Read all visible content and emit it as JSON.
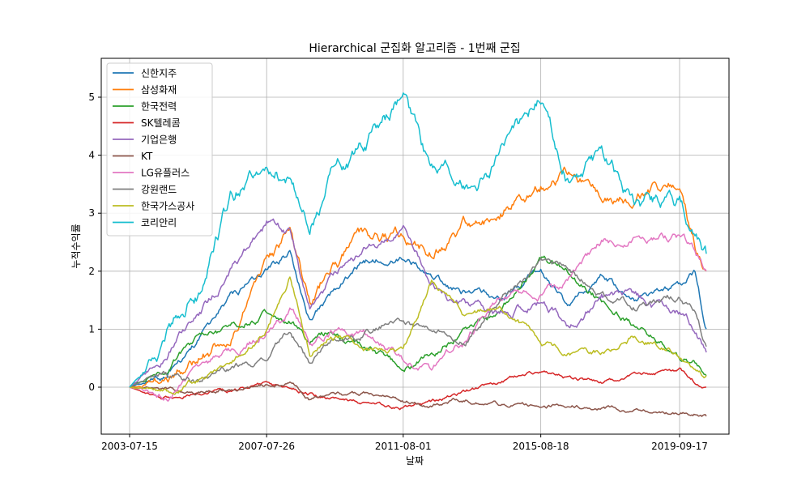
{
  "chart_data": {
    "type": "line",
    "title": "Hierarchical 군집화 알고리즘 - 1번째 군집",
    "xlabel": "날짜",
    "ylabel": "누적수익률",
    "x_range": [
      "2003-07-15",
      "2020-06-30"
    ],
    "x_ticks": [
      "2003-07-15",
      "2007-07-26",
      "2011-08-01",
      "2015-08-18",
      "2019-09-17"
    ],
    "ylim": [
      -0.8,
      5.6
    ],
    "y_ticks": [
      0,
      1,
      2,
      3,
      4,
      5
    ],
    "grid": true,
    "legend_position": "upper-left",
    "series": [
      {
        "name": "신한지주",
        "color": "#1f77b4",
        "x": [
          "2003-07-15",
          "2004-07-01",
          "2005-07-01",
          "2006-07-01",
          "2007-07-26",
          "2008-04-01",
          "2008-11-01",
          "2009-06-01",
          "2010-06-01",
          "2011-08-01",
          "2012-06-01",
          "2013-06-01",
          "2014-06-01",
          "2015-08-18",
          "2016-06-01",
          "2017-06-01",
          "2018-06-01",
          "2019-09-17",
          "2020-03-01",
          "2020-06-30"
        ],
        "values": [
          0,
          0.2,
          0.8,
          1.5,
          2.0,
          2.3,
          1.2,
          1.6,
          2.2,
          2.3,
          1.9,
          1.6,
          1.5,
          2.0,
          1.4,
          1.9,
          1.5,
          1.8,
          2.0,
          1.0
        ]
      },
      {
        "name": "삼성화재",
        "color": "#ff7f0e",
        "x": [
          "2003-07-15",
          "2004-07-01",
          "2005-07-01",
          "2006-07-01",
          "2007-07-26",
          "2008-04-01",
          "2008-11-01",
          "2009-06-01",
          "2010-06-01",
          "2011-08-01",
          "2012-06-01",
          "2013-06-01",
          "2014-06-01",
          "2015-08-18",
          "2016-06-01",
          "2017-06-01",
          "2018-06-01",
          "2019-09-17",
          "2020-03-01",
          "2020-06-30"
        ],
        "values": [
          0,
          0.1,
          0.4,
          0.9,
          2.2,
          2.6,
          1.5,
          2.0,
          2.5,
          2.6,
          2.3,
          2.8,
          3.0,
          3.5,
          3.7,
          3.4,
          3.3,
          3.6,
          2.5,
          2.0
        ]
      },
      {
        "name": "한국전력",
        "color": "#2ca02c",
        "x": [
          "2003-07-15",
          "2004-07-01",
          "2005-07-01",
          "2006-07-01",
          "2007-07-26",
          "2008-04-01",
          "2008-11-01",
          "2009-06-01",
          "2010-06-01",
          "2011-08-01",
          "2012-06-01",
          "2013-06-01",
          "2014-06-01",
          "2015-08-18",
          "2016-06-01",
          "2017-06-01",
          "2018-06-01",
          "2019-09-17",
          "2020-03-01",
          "2020-06-30"
        ],
        "values": [
          0,
          0.3,
          0.8,
          1.0,
          1.3,
          1.2,
          0.7,
          0.9,
          0.7,
          0.3,
          0.6,
          0.9,
          1.3,
          2.2,
          2.0,
          1.5,
          1.1,
          0.5,
          0.4,
          0.2
        ]
      },
      {
        "name": "SK텔레콤",
        "color": "#d62728",
        "x": [
          "2003-07-15",
          "2004-07-01",
          "2005-07-01",
          "2006-07-01",
          "2007-07-26",
          "2008-04-01",
          "2008-11-01",
          "2009-06-01",
          "2010-06-01",
          "2011-08-01",
          "2012-06-01",
          "2013-06-01",
          "2014-06-01",
          "2015-08-18",
          "2016-06-01",
          "2017-06-01",
          "2018-06-01",
          "2019-09-17",
          "2020-03-01",
          "2020-06-30"
        ],
        "values": [
          0,
          -0.2,
          -0.1,
          -0.05,
          0.05,
          0.0,
          -0.1,
          -0.2,
          -0.3,
          -0.35,
          -0.25,
          -0.1,
          0.1,
          0.3,
          0.15,
          0.1,
          0.2,
          0.3,
          0.1,
          0.0
        ]
      },
      {
        "name": "기업은행",
        "color": "#9467bd",
        "x": [
          "2003-07-15",
          "2004-07-01",
          "2005-07-01",
          "2006-07-01",
          "2007-07-26",
          "2008-04-01",
          "2008-11-01",
          "2009-06-01",
          "2010-06-01",
          "2011-08-01",
          "2012-06-01",
          "2013-06-01",
          "2014-06-01",
          "2015-08-18",
          "2016-06-01",
          "2017-06-01",
          "2018-06-01",
          "2019-09-17",
          "2020-03-01",
          "2020-06-30"
        ],
        "values": [
          0,
          0.5,
          1.2,
          2.0,
          2.8,
          2.6,
          1.3,
          1.8,
          2.4,
          2.7,
          1.8,
          1.4,
          1.2,
          1.5,
          1.1,
          1.6,
          1.5,
          1.3,
          1.0,
          0.6
        ]
      },
      {
        "name": "KT",
        "color": "#8c564b",
        "x": [
          "2003-07-15",
          "2004-07-01",
          "2005-07-01",
          "2006-07-01",
          "2007-07-26",
          "2008-04-01",
          "2008-11-01",
          "2009-06-01",
          "2010-06-01",
          "2011-08-01",
          "2012-06-01",
          "2013-06-01",
          "2014-06-01",
          "2015-08-18",
          "2016-06-01",
          "2017-06-01",
          "2018-06-01",
          "2019-09-17",
          "2020-03-01",
          "2020-06-30"
        ],
        "values": [
          0,
          -0.05,
          -0.1,
          0.0,
          0.05,
          0.1,
          -0.2,
          -0.15,
          -0.1,
          -0.25,
          -0.3,
          -0.2,
          -0.3,
          -0.35,
          -0.3,
          -0.35,
          -0.4,
          -0.45,
          -0.45,
          -0.5
        ]
      },
      {
        "name": "LG유플러스",
        "color": "#e377c2",
        "x": [
          "2003-07-15",
          "2004-07-01",
          "2005-07-01",
          "2006-07-01",
          "2007-07-26",
          "2008-04-01",
          "2008-11-01",
          "2009-06-01",
          "2010-06-01",
          "2011-08-01",
          "2012-06-01",
          "2013-06-01",
          "2014-06-01",
          "2015-08-18",
          "2016-06-01",
          "2017-06-01",
          "2018-06-01",
          "2019-09-17",
          "2020-03-01",
          "2020-06-30"
        ],
        "values": [
          0,
          -0.2,
          0.2,
          0.6,
          1.0,
          1.3,
          0.8,
          1.0,
          0.9,
          0.5,
          0.3,
          0.8,
          1.5,
          1.6,
          1.8,
          2.5,
          2.6,
          2.6,
          2.3,
          2.0
        ]
      },
      {
        "name": "강원랜드",
        "color": "#7f7f7f",
        "x": [
          "2003-07-15",
          "2004-07-01",
          "2005-07-01",
          "2006-07-01",
          "2007-07-26",
          "2008-04-01",
          "2008-11-01",
          "2009-06-01",
          "2010-06-01",
          "2011-08-01",
          "2012-06-01",
          "2013-06-01",
          "2014-06-01",
          "2015-08-18",
          "2016-06-01",
          "2017-06-01",
          "2018-06-01",
          "2019-09-17",
          "2020-03-01",
          "2020-06-30"
        ],
        "values": [
          0,
          0.2,
          0.1,
          0.3,
          0.5,
          1.0,
          0.4,
          0.8,
          0.9,
          1.2,
          0.9,
          0.8,
          1.5,
          2.1,
          2.1,
          1.6,
          1.4,
          1.6,
          1.3,
          0.7
        ]
      },
      {
        "name": "한국가스공사",
        "color": "#bcbd22",
        "x": [
          "2003-07-15",
          "2004-07-01",
          "2005-07-01",
          "2006-07-01",
          "2007-07-26",
          "2008-04-01",
          "2008-11-01",
          "2009-06-01",
          "2010-06-01",
          "2011-08-01",
          "2012-06-01",
          "2013-06-01",
          "2014-06-01",
          "2015-08-18",
          "2016-06-01",
          "2017-06-01",
          "2018-06-01",
          "2019-09-17",
          "2020-03-01",
          "2020-06-30"
        ],
        "values": [
          0,
          -0.1,
          0.1,
          0.4,
          1.0,
          1.9,
          0.6,
          0.9,
          0.7,
          0.6,
          1.8,
          1.2,
          1.4,
          0.8,
          0.6,
          0.6,
          0.9,
          0.6,
          0.4,
          0.2
        ]
      },
      {
        "name": "코리안리",
        "color": "#17becf",
        "x": [
          "2003-07-15",
          "2004-07-01",
          "2005-07-01",
          "2006-07-01",
          "2007-07-26",
          "2008-04-01",
          "2008-11-01",
          "2009-06-01",
          "2010-06-01",
          "2011-08-01",
          "2012-06-01",
          "2013-06-01",
          "2014-06-01",
          "2015-08-18",
          "2016-06-01",
          "2017-06-01",
          "2018-06-01",
          "2019-09-17",
          "2020-03-01",
          "2020-06-30"
        ],
        "values": [
          0,
          0.7,
          1.6,
          3.2,
          4.0,
          3.6,
          2.6,
          3.6,
          4.2,
          5.0,
          3.7,
          3.6,
          3.9,
          4.9,
          3.7,
          4.0,
          3.2,
          3.2,
          2.6,
          2.3
        ]
      }
    ]
  }
}
